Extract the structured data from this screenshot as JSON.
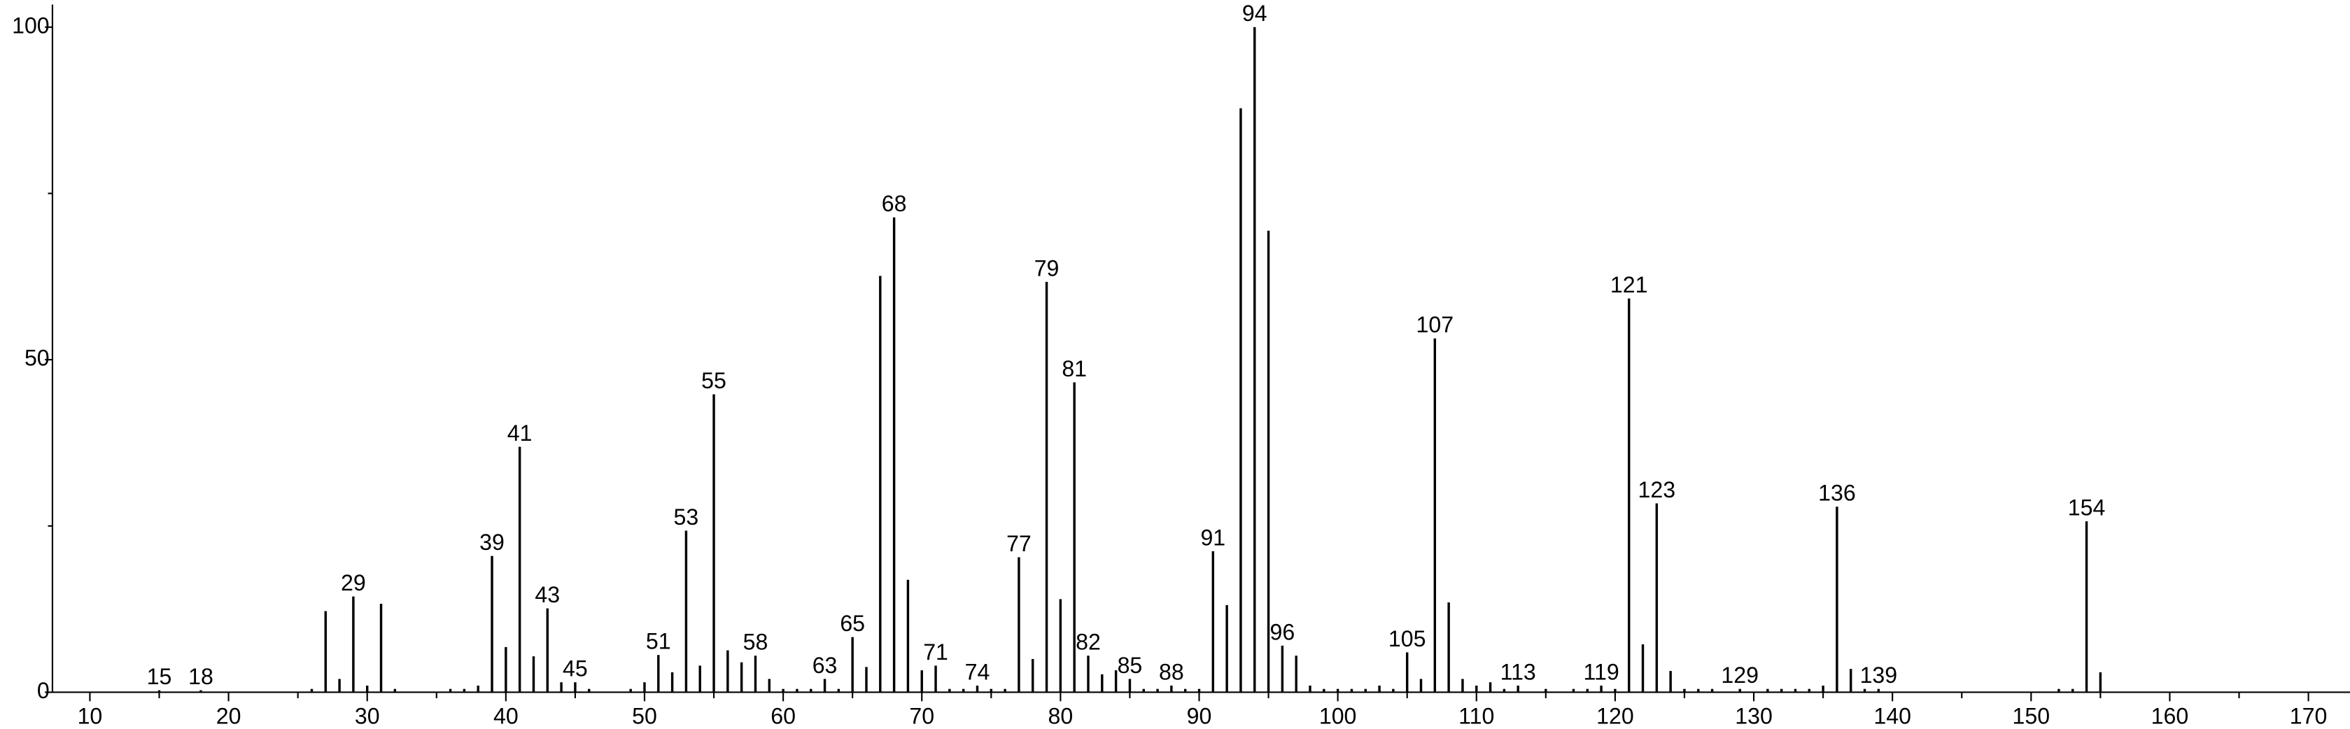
{
  "chart_data": {
    "type": "bar",
    "color": "#000000",
    "xlim": [
      7.3,
      173
    ],
    "ylim": [
      0,
      103.4
    ],
    "xticks": [
      10,
      20,
      30,
      40,
      50,
      60,
      70,
      80,
      90,
      100,
      110,
      120,
      130,
      140,
      150,
      160,
      170
    ],
    "xminor": [
      15,
      25,
      35,
      45,
      55,
      65,
      75,
      85,
      95,
      105,
      115,
      125,
      135,
      145,
      155,
      165
    ],
    "yticks": [
      0,
      50,
      100
    ],
    "yminor": [
      25,
      75
    ],
    "x": [
      15,
      18,
      26,
      27,
      28,
      29,
      30,
      31,
      32,
      36,
      37,
      38,
      39,
      40,
      41,
      42,
      43,
      44,
      45,
      46,
      49,
      50,
      51,
      52,
      53,
      54,
      55,
      56,
      57,
      58,
      59,
      60,
      61,
      62,
      63,
      64,
      65,
      66,
      67,
      68,
      69,
      70,
      71,
      72,
      73,
      74,
      75,
      76,
      77,
      78,
      79,
      80,
      81,
      82,
      83,
      84,
      85,
      86,
      87,
      88,
      89,
      90,
      91,
      92,
      93,
      94,
      95,
      96,
      97,
      98,
      99,
      100,
      101,
      102,
      103,
      104,
      105,
      106,
      107,
      108,
      109,
      110,
      111,
      112,
      113,
      115,
      117,
      118,
      119,
      120,
      121,
      122,
      123,
      124,
      125,
      126,
      127,
      129,
      131,
      132,
      133,
      134,
      135,
      136,
      137,
      138,
      139,
      152,
      153,
      154,
      155
    ],
    "values": [
      0.3,
      0.3,
      0.5,
      12.2,
      2,
      14.4,
      1,
      13.3,
      0.5,
      0.5,
      0.5,
      1,
      20.5,
      6.8,
      36.9,
      5.4,
      12.6,
      1.5,
      1.5,
      0.5,
      0.5,
      1.5,
      5.6,
      3,
      24.3,
      4,
      44.8,
      6.3,
      4.5,
      5.5,
      2,
      0.5,
      0.5,
      0.5,
      2,
      0.5,
      8.3,
      3.8,
      62.6,
      71.4,
      16.9,
      3.3,
      4,
      0.5,
      0.5,
      1,
      0.5,
      0.5,
      20.3,
      5,
      61.7,
      14,
      46.6,
      5.5,
      2.7,
      3.3,
      2,
      0.5,
      0.5,
      1,
      0.5,
      0.5,
      21.2,
      13.1,
      87.8,
      100,
      69.4,
      7,
      5.5,
      1,
      0.5,
      0.5,
      0.5,
      0.5,
      1,
      0.5,
      6,
      2,
      53.2,
      13.5,
      2,
      1,
      1.5,
      0.5,
      1,
      0.5,
      0.5,
      0.5,
      1,
      0.5,
      59.2,
      7.2,
      28.4,
      3.2,
      0.5,
      0.5,
      0.5,
      0.5,
      0.5,
      0.5,
      0.5,
      0.5,
      1,
      27.9,
      3.5,
      0.5,
      0.5,
      0.5,
      0.5,
      25.7,
      3
    ],
    "peak_labels": [
      "15",
      "18",
      null,
      null,
      null,
      "29",
      null,
      null,
      null,
      null,
      null,
      null,
      "39",
      null,
      "41",
      null,
      "43",
      null,
      "45",
      null,
      null,
      null,
      "51",
      null,
      "53",
      null,
      "55",
      null,
      null,
      "58",
      null,
      null,
      null,
      null,
      "63",
      null,
      "65",
      null,
      null,
      "68",
      null,
      null,
      "71",
      null,
      null,
      "74",
      null,
      null,
      "77",
      null,
      "79",
      null,
      "81",
      "82",
      null,
      null,
      "85",
      null,
      null,
      "88",
      null,
      null,
      "91",
      null,
      null,
      "94",
      null,
      "96",
      null,
      null,
      null,
      null,
      null,
      null,
      null,
      null,
      "105",
      null,
      "107",
      null,
      null,
      null,
      null,
      null,
      "113",
      null,
      null,
      null,
      "119",
      null,
      "121",
      null,
      "123",
      null,
      null,
      null,
      null,
      "129",
      null,
      null,
      null,
      null,
      null,
      "136",
      null,
      null,
      "139",
      null,
      null,
      "154",
      null
    ]
  }
}
